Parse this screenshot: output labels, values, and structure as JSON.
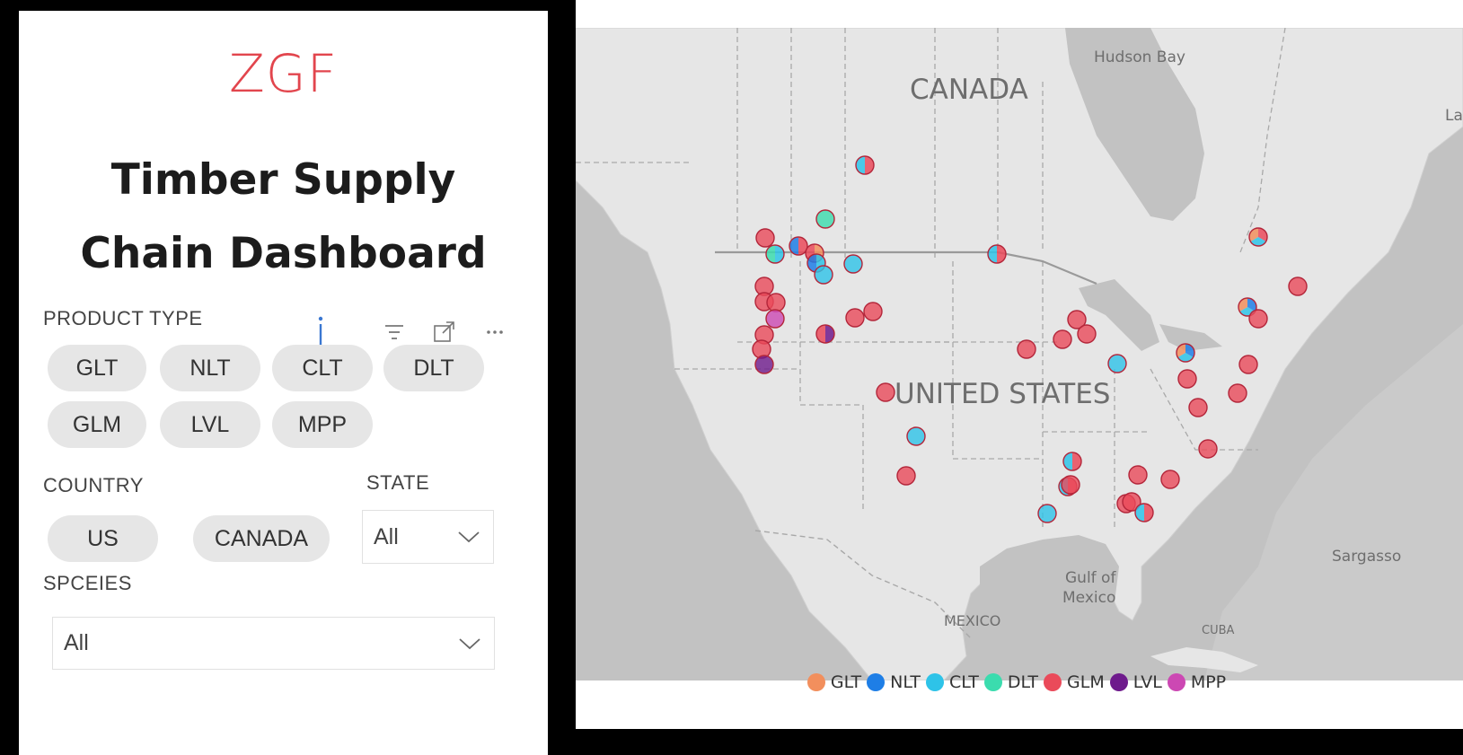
{
  "logo": "ZGF",
  "title": {
    "line1": "Timber Supply",
    "line2": "Chain Dashboard"
  },
  "filters": {
    "product_type_label": "PRODUCT TYPE",
    "product_types": [
      "GLT",
      "NLT",
      "CLT",
      "DLT",
      "GLM",
      "LVL",
      "MPP"
    ],
    "info_icon": "info-icon",
    "country_label": "COUNTRY",
    "countries": [
      "US",
      "CANADA"
    ],
    "state_label": "STATE",
    "state_value": "All",
    "species_label": "SPCEIES",
    "species_value": "All"
  },
  "map": {
    "labels": {
      "canada": "CANADA",
      "united_states": "UNITED STATES",
      "hudson_bay": "Hudson Bay",
      "gulf_line1": "Gulf of",
      "gulf_line2": "Mexico",
      "mexico": "MEXICO",
      "cuba": "CUBA",
      "sargasso": "Sargasso",
      "la": "La"
    }
  },
  "legend": [
    {
      "name": "GLT",
      "color": "#f28f5d"
    },
    {
      "name": "NLT",
      "color": "#1e7ee6"
    },
    {
      "name": "CLT",
      "color": "#2ec3e8"
    },
    {
      "name": "DLT",
      "color": "#3bdcae"
    },
    {
      "name": "GLM",
      "color": "#ea4a5a"
    },
    {
      "name": "LVL",
      "color": "#6e1a8c"
    },
    {
      "name": "MPP",
      "color": "#cc48b3"
    }
  ]
}
